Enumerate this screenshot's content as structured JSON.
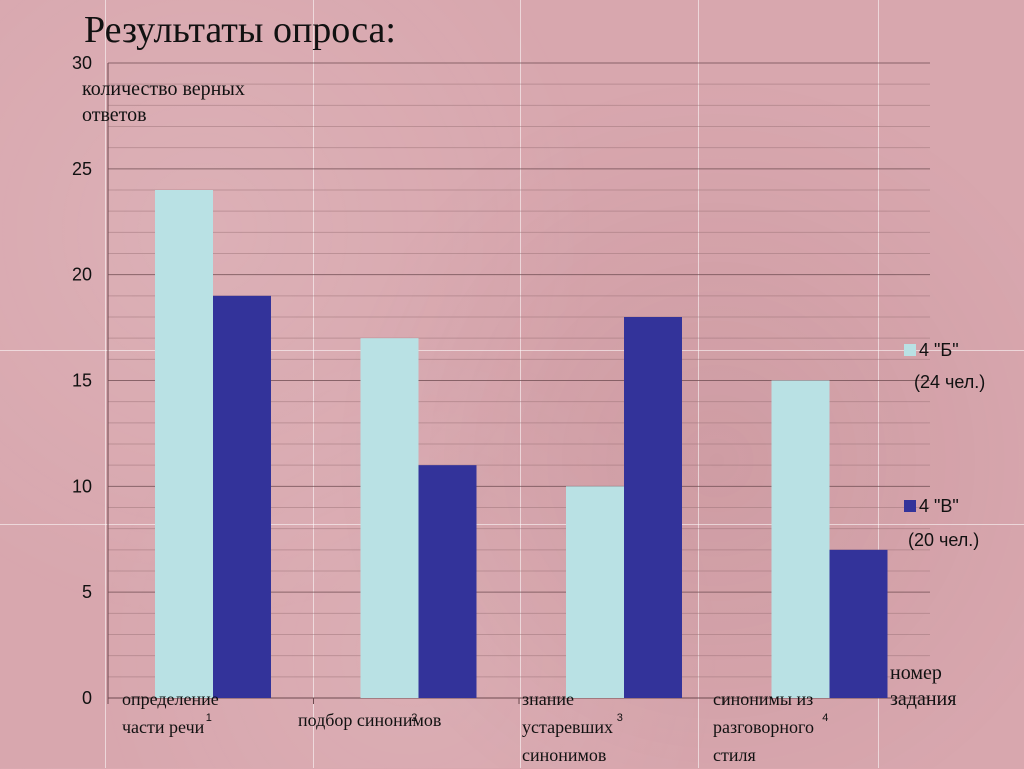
{
  "slide": {
    "title": "Результаты опроса:"
  },
  "chart_data": {
    "type": "bar",
    "categories": [
      "1",
      "2",
      "3",
      "4"
    ],
    "category_labels": [
      "определение части речи",
      "подбор синонимов",
      "знание устаревших синонимов",
      "синонимы из разговорного стиля"
    ],
    "series": [
      {
        "name": "4 \"Б\"",
        "note": "(24 чел.)",
        "values": [
          24,
          17,
          10,
          15
        ],
        "color": "#b9e1e4"
      },
      {
        "name": "4 \"В\"",
        "note": "(20 чел.)",
        "values": [
          19,
          11,
          18,
          7
        ],
        "color": "#33339a"
      }
    ],
    "ylim": [
      0,
      30
    ],
    "yticks": [
      "0",
      "5",
      "10",
      "15",
      "20",
      "25",
      "30"
    ],
    "ylabel": "количество верных ответов",
    "xlabel": "номер задания",
    "legend": "right",
    "grid": true
  }
}
